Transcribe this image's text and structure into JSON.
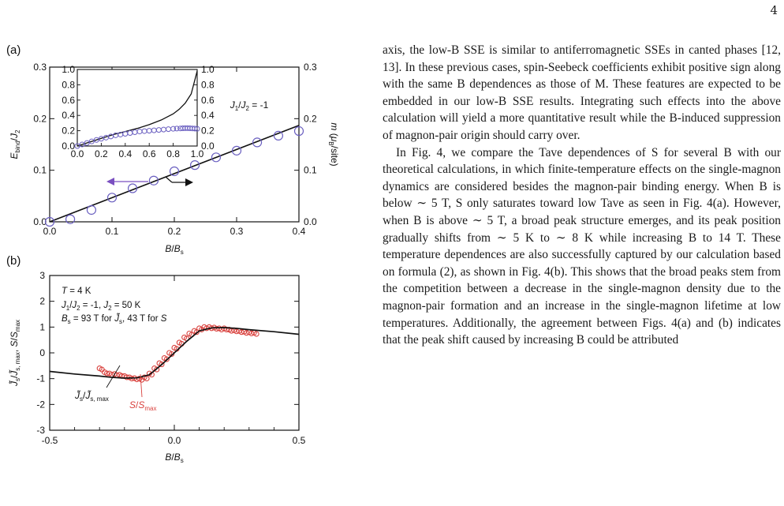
{
  "page_number": "4",
  "text": {
    "para1": "axis, the low-B SSE is similar to antiferromagnetic SSEs in canted phases [12, 13]. In these previous cases, spin-Seebeck coefficients exhibit positive sign along with the same B dependences as those of M. These features are expected to be embedded in our low-B SSE results. Integrating such effects into the above calculation will yield a more quantitative result while the B-induced suppression of magnon-pair origin should carry over.",
    "para2": "In Fig. 4, we compare the Tave dependences of S for several B with our theoretical calculations, in which finite-temperature effects on the single-magnon dynamics are considered besides the magnon-pair binding energy. When B is below ∼ 5 T, S only saturates toward low Tave as seen in Fig. 4(a). However, when B is above ∼ 5 T, a broad peak structure emerges, and its peak position gradually shifts from ∼ 5 K to ∼ 8 K while increasing B to 14 T. These temperature dependences are also successfully captured by our calculation based on formula (2), as shown in Fig. 4(b). This shows that the broad peaks stem from the competition between a decrease in the single-magnon density due to the magnon-pair formation and an increase in the single-magnon lifetime at low temperatures. Additionally, the agreement between Figs. 4(a) and (b) indicates that the peak shift caused by increasing B could be attributed"
  },
  "chart_data": [
    {
      "type": "line+scatter",
      "panel": "(a)",
      "xlabel": "B/Bs",
      "ylabel": "Ebind/J2",
      "ylabel_right": "m (μB/site)",
      "annotation": "J1/J2 = -1",
      "xlim": [
        0,
        0.4
      ],
      "ylim": [
        0,
        0.3
      ],
      "x_ticks": [
        "0.0",
        "0.1",
        "0.2",
        "0.3",
        "0.4"
      ],
      "y_ticks": [
        "0.0",
        "0.1",
        "0.2",
        "0.3"
      ],
      "y_right_ticks": [
        "0.0",
        "0.1",
        "0.2",
        "0.3"
      ],
      "series": [
        {
          "role": "line",
          "x": [
            0,
            0.4
          ],
          "y": [
            0,
            0.187
          ]
        },
        {
          "role": "circles",
          "x": [
            0.0,
            0.033,
            0.067,
            0.1,
            0.133,
            0.167,
            0.2,
            0.233,
            0.267,
            0.3,
            0.333,
            0.367,
            0.4
          ],
          "y": [
            0.0,
            0.005,
            0.023,
            0.047,
            0.065,
            0.08,
            0.098,
            0.11,
            0.125,
            0.138,
            0.154,
            0.167,
            0.176
          ]
        }
      ],
      "inset": {
        "xlim": [
          0,
          1
        ],
        "ylim": [
          0,
          1
        ],
        "x_ticks": [
          "0.0",
          "0.2",
          "0.4",
          "0.6",
          "0.8",
          "1.0"
        ],
        "y_ticks": [
          "0.0",
          "0.2",
          "0.4",
          "0.6",
          "0.8",
          "1.0"
        ],
        "y_right_ticks": [
          "0.0",
          "0.2",
          "0.4",
          "0.6",
          "0.8",
          "1.0"
        ],
        "series": [
          {
            "role": "line",
            "x": [
              0,
              0.1,
              0.2,
              0.3,
              0.4,
              0.5,
              0.6,
              0.7,
              0.8,
              0.85,
              0.9,
              0.95,
              1.0
            ],
            "y": [
              0,
              0.05,
              0.1,
              0.15,
              0.19,
              0.23,
              0.28,
              0.34,
              0.42,
              0.48,
              0.56,
              0.68,
              0.98
            ]
          },
          {
            "role": "circles",
            "x": [
              0,
              0.04,
              0.08,
              0.12,
              0.16,
              0.2,
              0.24,
              0.28,
              0.32,
              0.36,
              0.4,
              0.44,
              0.48,
              0.52,
              0.56,
              0.6,
              0.64,
              0.68,
              0.72,
              0.76,
              0.8,
              0.83,
              0.86,
              0.88,
              0.9,
              0.92,
              0.94,
              0.96,
              0.98,
              1.0
            ],
            "y": [
              0,
              0.02,
              0.04,
              0.06,
              0.08,
              0.095,
              0.11,
              0.125,
              0.14,
              0.15,
              0.16,
              0.17,
              0.18,
              0.19,
              0.195,
              0.2,
              0.205,
              0.21,
              0.215,
              0.22,
              0.225,
              0.228,
              0.23,
              0.232,
              0.233,
              0.233,
              0.232,
              0.23,
              0.228,
              0.225
            ]
          }
        ]
      }
    },
    {
      "type": "line+scatter",
      "panel": "(b)",
      "xlabel": "B/Bs",
      "ylabel": "J̃s/J̃s,max, S/Smax",
      "annotations": [
        "T = 4 K",
        "J1/J2 = -1, J2 = 50 K",
        "Bs = 93 T for J̃s, 43 T for S"
      ],
      "series_labels": [
        "J̃s/J̃s, max",
        "S/Smax"
      ],
      "xlim": [
        -0.5,
        0.5
      ],
      "ylim": [
        -3,
        3
      ],
      "x_ticks": [
        "-0.5",
        "0.0",
        "0.5"
      ],
      "y_ticks": [
        "-3",
        "-2",
        "-1",
        "0",
        "1",
        "2",
        "3"
      ],
      "series": [
        {
          "name": "J̃s/J̃s, max",
          "role": "line",
          "x": [
            -0.5,
            -0.4,
            -0.3,
            -0.25,
            -0.2,
            -0.15,
            -0.1,
            -0.05,
            0,
            0.05,
            0.1,
            0.15,
            0.2,
            0.25,
            0.3,
            0.4,
            0.5
          ],
          "y": [
            -0.72,
            -0.82,
            -0.9,
            -0.95,
            -0.98,
            -0.97,
            -0.85,
            -0.45,
            0.0,
            0.45,
            0.85,
            0.97,
            0.98,
            0.95,
            0.9,
            0.82,
            0.72
          ]
        },
        {
          "name": "S/Smax",
          "role": "circles",
          "color": "#d9423e",
          "x": [
            -0.3,
            -0.28,
            -0.26,
            -0.24,
            -0.22,
            -0.2,
            -0.18,
            -0.16,
            -0.14,
            -0.12,
            -0.1,
            -0.08,
            -0.06,
            -0.04,
            -0.02,
            0,
            0.02,
            0.04,
            0.06,
            0.08,
            0.1,
            0.12,
            0.14,
            0.16,
            0.18,
            0.2,
            0.22,
            0.24,
            0.26,
            0.28,
            0.3,
            0.32
          ],
          "y": [
            -0.6,
            -0.75,
            -0.8,
            -0.82,
            -0.85,
            -0.9,
            -0.95,
            -0.98,
            -1.0,
            -0.95,
            -0.8,
            -0.6,
            -0.4,
            -0.2,
            0.0,
            0.2,
            0.4,
            0.6,
            0.75,
            0.85,
            0.95,
            1.0,
            1.0,
            0.98,
            0.95,
            0.95,
            0.9,
            0.88,
            0.85,
            0.82,
            0.8,
            0.78
          ]
        }
      ]
    }
  ]
}
